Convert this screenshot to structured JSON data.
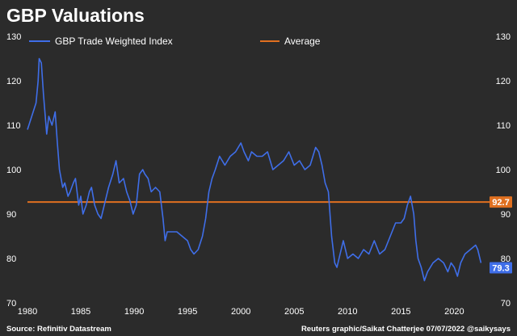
{
  "chart_data": {
    "type": "line",
    "title": "GBP Valuations",
    "x_ticks": [
      "1980",
      "1985",
      "1990",
      "1995",
      "2000",
      "2005",
      "2010",
      "2015",
      "2020"
    ],
    "y_ticks": [
      "130",
      "120",
      "110",
      "100",
      "90",
      "80",
      "70"
    ],
    "xlim": [
      1980,
      2023
    ],
    "ylim": [
      70,
      130
    ],
    "grid": false,
    "legend_position": "top",
    "series": [
      {
        "name": "GBP Trade Weighted Index",
        "color": "#3f6ee8",
        "end_label": "79.3",
        "x": [
          1980.0,
          1980.4,
          1980.8,
          1981.0,
          1981.1,
          1981.3,
          1981.5,
          1981.8,
          1982.0,
          1982.3,
          1982.6,
          1982.8,
          1983.0,
          1983.3,
          1983.5,
          1983.8,
          1984.0,
          1984.3,
          1984.5,
          1984.8,
          1985.0,
          1985.2,
          1985.5,
          1985.8,
          1986.0,
          1986.3,
          1986.6,
          1986.9,
          1987.3,
          1987.6,
          1988.0,
          1988.3,
          1988.6,
          1989.0,
          1989.3,
          1989.6,
          1989.9,
          1990.2,
          1990.5,
          1990.8,
          1991.0,
          1991.3,
          1991.6,
          1992.0,
          1992.4,
          1992.7,
          1992.9,
          1993.1,
          1993.5,
          1994.0,
          1994.5,
          1995.0,
          1995.3,
          1995.6,
          1996.0,
          1996.4,
          1996.7,
          1997.0,
          1997.3,
          1997.6,
          1998.0,
          1998.5,
          1999.0,
          1999.5,
          2000.0,
          2000.3,
          2000.7,
          2001.0,
          2001.5,
          2002.0,
          2002.5,
          2003.0,
          2003.5,
          2004.0,
          2004.5,
          2005.0,
          2005.5,
          2006.0,
          2006.5,
          2007.0,
          2007.3,
          2007.6,
          2007.9,
          2008.2,
          2008.5,
          2008.8,
          2009.0,
          2009.3,
          2009.6,
          2010.0,
          2010.5,
          2011.0,
          2011.5,
          2012.0,
          2012.5,
          2013.0,
          2013.5,
          2014.0,
          2014.5,
          2015.0,
          2015.3,
          2015.6,
          2015.9,
          2016.2,
          2016.4,
          2016.6,
          2016.9,
          2017.2,
          2017.5,
          2018.0,
          2018.5,
          2019.0,
          2019.4,
          2019.7,
          2020.0,
          2020.3,
          2020.6,
          2021.0,
          2021.5,
          2022.0,
          2022.2,
          2022.5
        ],
        "y": [
          109,
          112,
          115,
          120,
          125,
          124,
          117,
          108,
          112,
          110,
          113,
          106,
          100,
          96,
          97,
          94,
          95,
          97,
          98,
          92,
          94,
          90,
          92,
          95,
          96,
          92,
          90,
          89,
          93,
          96,
          99,
          102,
          97,
          98,
          95,
          93,
          90,
          92,
          99,
          100,
          99,
          98,
          95,
          96,
          95,
          89,
          84,
          86,
          86,
          86,
          85,
          84,
          82,
          81,
          82,
          85,
          89,
          95,
          98,
          100,
          103,
          101,
          103,
          104,
          106,
          104,
          102,
          104,
          103,
          103,
          104,
          100,
          101,
          102,
          104,
          101,
          102,
          100,
          101,
          105,
          104,
          101,
          97,
          95,
          85,
          79,
          78,
          81,
          84,
          80,
          81,
          80,
          82,
          81,
          84,
          81,
          82,
          85,
          88,
          88,
          89,
          92,
          94,
          90,
          84,
          80,
          78,
          75,
          77,
          79,
          80,
          79,
          77,
          79,
          78,
          76,
          79,
          81,
          82,
          83,
          82,
          79
        ]
      },
      {
        "name": "Average",
        "color": "#e07020",
        "constant": 92.7,
        "end_label": "92.7"
      }
    ]
  },
  "footer": {
    "source": "Source: Refinitiv Datastream",
    "credit": "Reuters graphic/Saikat Chatterjee 07/07/2022 @saikysays"
  }
}
